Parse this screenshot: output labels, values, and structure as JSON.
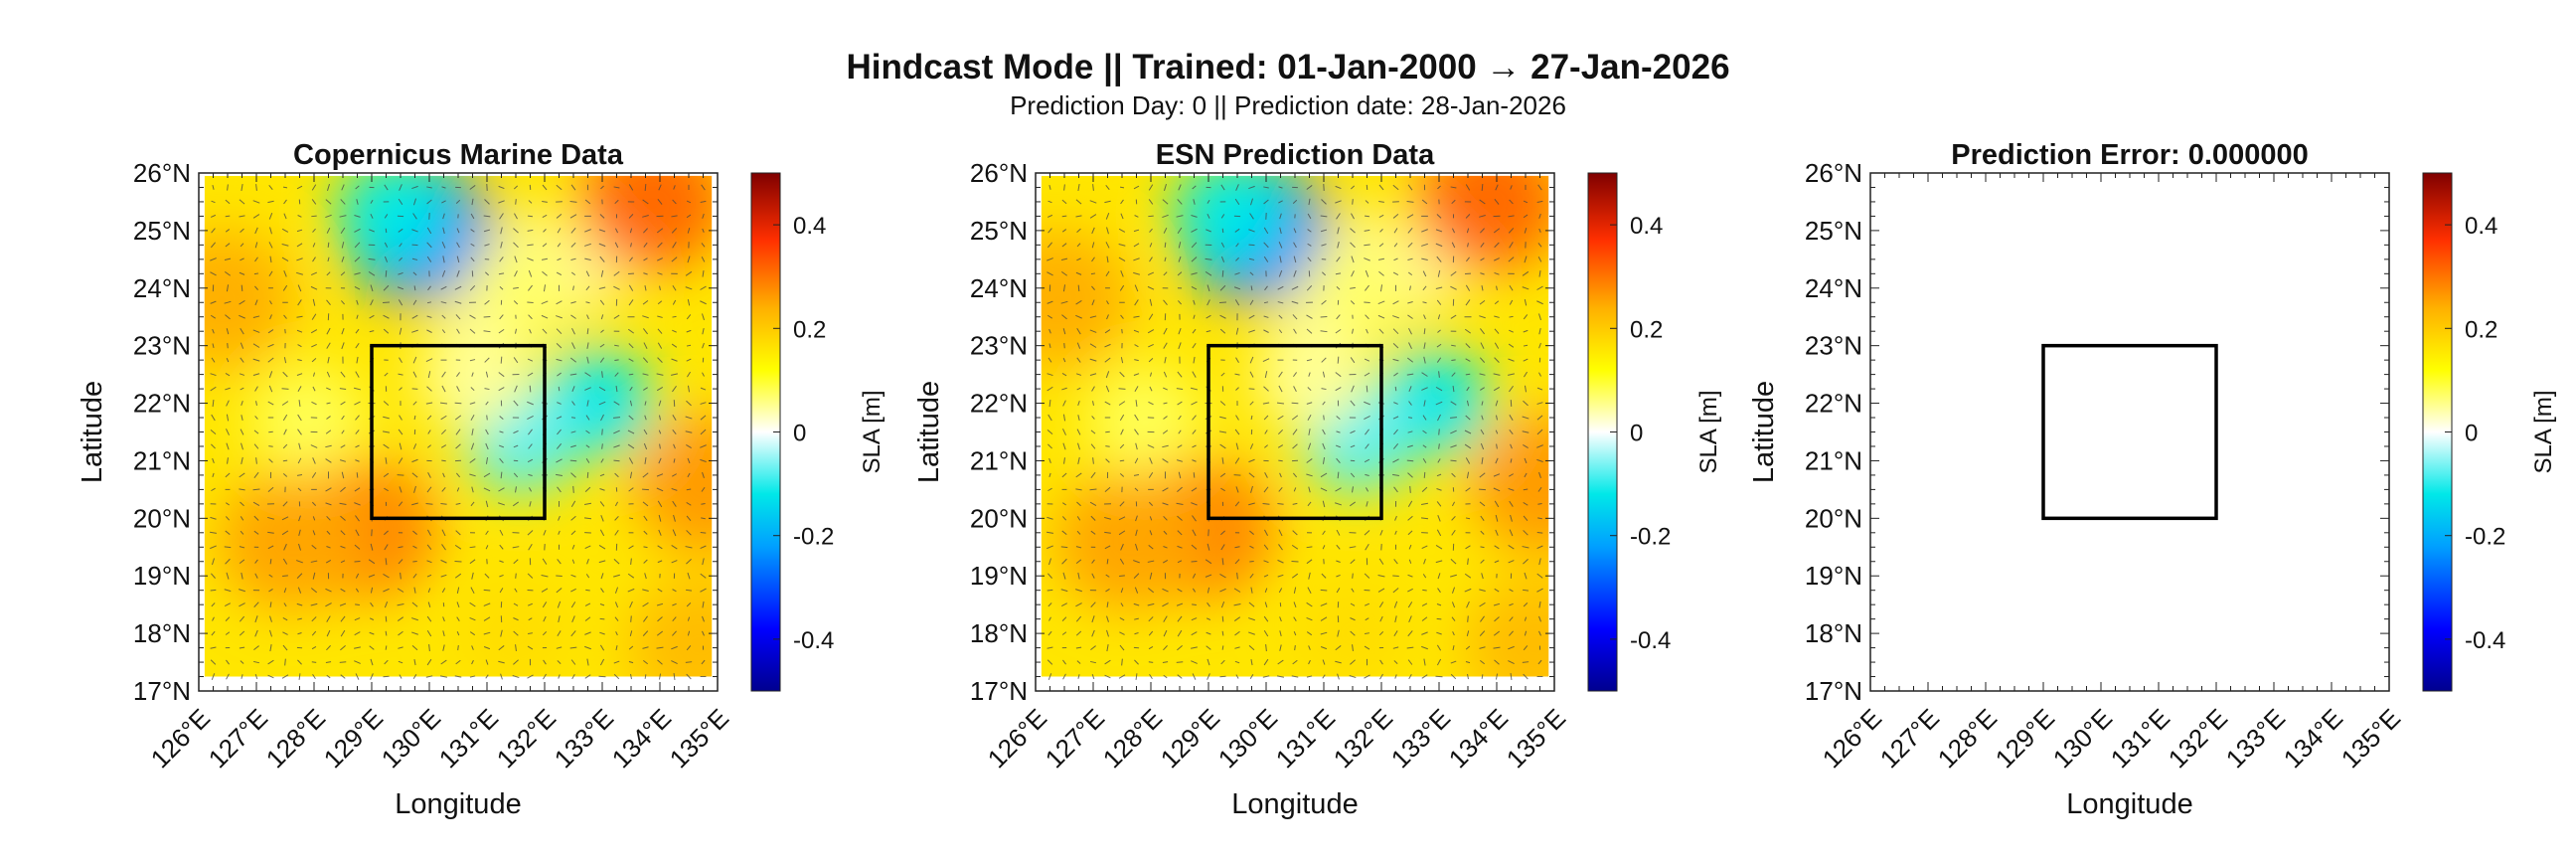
{
  "figure": {
    "title": "Hindcast Mode || Trained: 01-Jan-2000 → 27-Jan-2026",
    "subtitle": "Prediction Day: 0 || Prediction date: 28-Jan-2026"
  },
  "chart_data": [
    {
      "type": "heatmap",
      "title": "Copernicus Marine Data",
      "xlabel": "Longitude",
      "ylabel": "Latitude",
      "xlim": [
        126,
        135
      ],
      "ylim": [
        17,
        26
      ],
      "xticks": [
        "126°E",
        "127°E",
        "128°E",
        "129°E",
        "130°E",
        "131°E",
        "132°E",
        "133°E",
        "134°E",
        "135°E"
      ],
      "yticks": [
        "17°N",
        "18°N",
        "19°N",
        "20°N",
        "21°N",
        "22°N",
        "23°N",
        "24°N",
        "25°N",
        "26°N"
      ],
      "colorbar": {
        "label": "SLA [m]",
        "range": [
          -0.5,
          0.5
        ],
        "ticks": [
          "-0.4",
          "-0.2",
          "0",
          "0.2",
          "0.4"
        ],
        "colormap": "jet-like"
      },
      "field_visible": true,
      "vectors": true,
      "features": [
        {
          "lon": 129.8,
          "lat": 25.0,
          "sla": -0.28
        },
        {
          "lon": 129.4,
          "lat": 25.3,
          "sla": -0.12
        },
        {
          "lon": 128.9,
          "lat": 19.8,
          "sla": 0.28
        },
        {
          "lon": 127.6,
          "lat": 19.6,
          "sla": 0.25
        },
        {
          "lon": 133.9,
          "lat": 25.5,
          "sla": 0.31
        },
        {
          "lon": 126.4,
          "lat": 23.8,
          "sla": 0.24
        },
        {
          "lon": 134.8,
          "lat": 20.6,
          "sla": 0.26
        },
        {
          "lon": 134.7,
          "lat": 17.8,
          "sla": 0.22
        },
        {
          "lon": 132.9,
          "lat": 22.0,
          "sla": -0.12
        },
        {
          "lon": 131.6,
          "lat": 21.4,
          "sla": -0.08
        },
        {
          "lon": 131.6,
          "lat": 24.0,
          "sla": 0.07
        },
        {
          "lon": 127.9,
          "lat": 21.7,
          "sla": 0.08
        },
        {
          "lon": 130.8,
          "lat": 22.5,
          "sla": 0.05
        },
        {
          "lon": 131.5,
          "lat": 18.0,
          "sla": 0.17
        }
      ],
      "box": {
        "lon": [
          129,
          132
        ],
        "lat": [
          20,
          23
        ]
      }
    },
    {
      "type": "heatmap",
      "title": "ESN Prediction Data",
      "xlabel": "Longitude",
      "ylabel": "Latitude",
      "xlim": [
        126,
        135
      ],
      "ylim": [
        17,
        26
      ],
      "xticks": [
        "126°E",
        "127°E",
        "128°E",
        "129°E",
        "130°E",
        "131°E",
        "132°E",
        "133°E",
        "134°E",
        "135°E"
      ],
      "yticks": [
        "17°N",
        "18°N",
        "19°N",
        "20°N",
        "21°N",
        "22°N",
        "23°N",
        "24°N",
        "25°N",
        "26°N"
      ],
      "colorbar": {
        "label": "SLA [m]",
        "range": [
          -0.5,
          0.5
        ],
        "ticks": [
          "-0.4",
          "-0.2",
          "0",
          "0.2",
          "0.4"
        ],
        "colormap": "jet-like"
      },
      "field_visible": true,
      "vectors": true,
      "features": [
        {
          "lon": 129.8,
          "lat": 25.0,
          "sla": -0.28
        },
        {
          "lon": 129.4,
          "lat": 25.3,
          "sla": -0.12
        },
        {
          "lon": 128.9,
          "lat": 19.8,
          "sla": 0.28
        },
        {
          "lon": 127.6,
          "lat": 19.6,
          "sla": 0.25
        },
        {
          "lon": 133.9,
          "lat": 25.5,
          "sla": 0.31
        },
        {
          "lon": 126.4,
          "lat": 23.8,
          "sla": 0.24
        },
        {
          "lon": 134.8,
          "lat": 20.6,
          "sla": 0.26
        },
        {
          "lon": 134.7,
          "lat": 17.8,
          "sla": 0.22
        },
        {
          "lon": 132.9,
          "lat": 22.0,
          "sla": -0.12
        },
        {
          "lon": 131.6,
          "lat": 21.4,
          "sla": -0.08
        },
        {
          "lon": 131.6,
          "lat": 24.0,
          "sla": 0.07
        },
        {
          "lon": 127.9,
          "lat": 21.7,
          "sla": 0.08
        },
        {
          "lon": 130.8,
          "lat": 22.5,
          "sla": 0.05
        },
        {
          "lon": 131.5,
          "lat": 18.0,
          "sla": 0.17
        }
      ],
      "box": {
        "lon": [
          129,
          132
        ],
        "lat": [
          20,
          23
        ]
      }
    },
    {
      "type": "heatmap",
      "title": "Prediction Error: 0.000000",
      "xlabel": "Longitude",
      "ylabel": "Latitude",
      "xlim": [
        126,
        135
      ],
      "ylim": [
        17,
        26
      ],
      "xticks": [
        "126°E",
        "127°E",
        "128°E",
        "129°E",
        "130°E",
        "131°E",
        "132°E",
        "133°E",
        "134°E",
        "135°E"
      ],
      "yticks": [
        "17°N",
        "18°N",
        "19°N",
        "20°N",
        "21°N",
        "22°N",
        "23°N",
        "24°N",
        "25°N",
        "26°N"
      ],
      "colorbar": {
        "label": "SLA [m]",
        "range": [
          -0.5,
          0.5
        ],
        "ticks": [
          "-0.4",
          "-0.2",
          "0",
          "0.2",
          "0.4"
        ],
        "colormap": "jet-like"
      },
      "field_visible": false,
      "vectors": false,
      "features": [],
      "box": {
        "lon": [
          129,
          132
        ],
        "lat": [
          20,
          23
        ]
      }
    }
  ]
}
